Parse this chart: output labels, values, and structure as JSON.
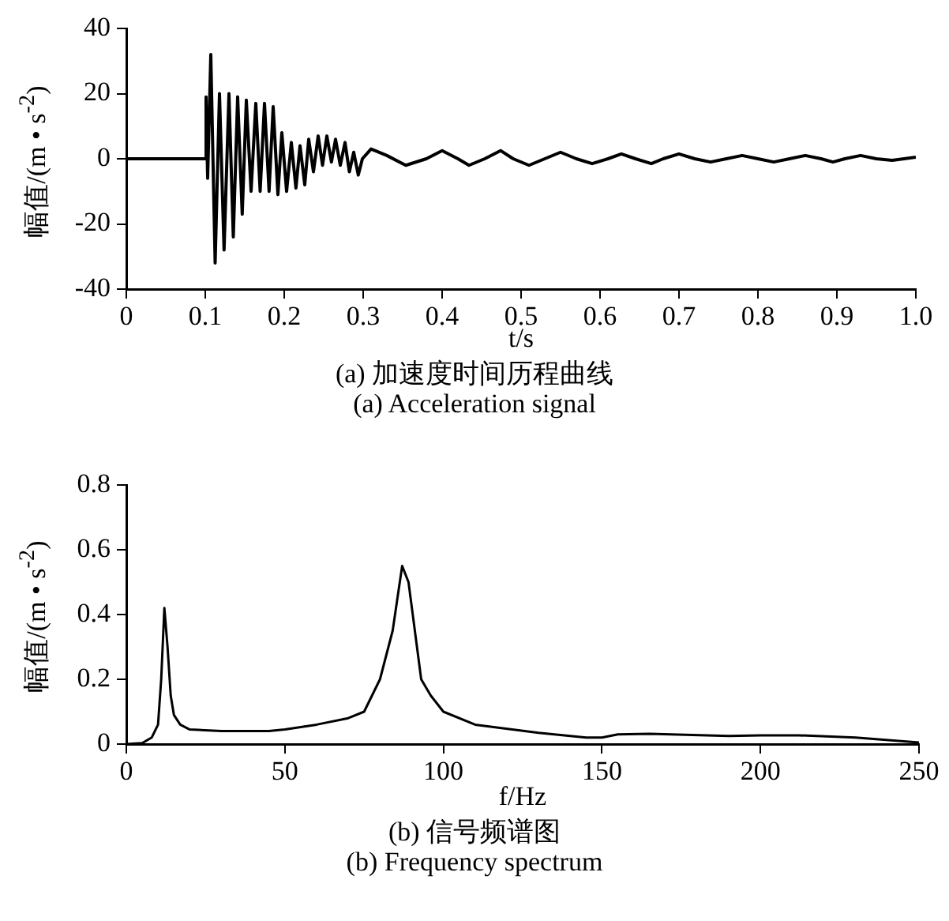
{
  "chart_data": [
    {
      "type": "line",
      "xlabel": "t/s",
      "ylabel": "幅值/(m • s$^{-2}$)",
      "annotations": [
        "(a)  加速度时间历程曲线",
        "(a)  Acceleration signal"
      ],
      "xlim": [
        0,
        1
      ],
      "xticks": [
        0,
        0.1,
        0.2,
        0.3,
        0.4,
        0.5,
        0.6,
        0.7,
        0.8,
        0.9,
        {
          "value": 1,
          "label": "1.0"
        }
      ],
      "ylim": [
        -40,
        40
      ],
      "yticks": [
        -40,
        -20,
        0,
        20,
        40
      ],
      "grid": false,
      "legend": false,
      "marker": "none",
      "line_style": "solid",
      "series": [
        {
          "color": "#000000",
          "x": [
            0,
            0.1,
            0.101,
            0.103,
            0.107,
            0.1125,
            0.118,
            0.1238,
            0.13,
            0.1355,
            0.141,
            0.1468,
            0.152,
            0.158,
            0.164,
            0.1695,
            0.175,
            0.1808,
            0.186,
            0.192,
            0.197,
            0.203,
            0.209,
            0.2148,
            0.22,
            0.226,
            0.231,
            0.237,
            0.243,
            0.2485,
            0.254,
            0.2598,
            0.265,
            0.271,
            0.277,
            0.2825,
            0.288,
            0.2938,
            0.299,
            0.31,
            0.33,
            0.354,
            0.38,
            0.4,
            0.42,
            0.434,
            0.454,
            0.474,
            0.49,
            0.51,
            0.53,
            0.55,
            0.57,
            0.59,
            0.61,
            0.627,
            0.645,
            0.665,
            0.68,
            0.7,
            0.72,
            0.74,
            0.76,
            0.78,
            0.8,
            0.82,
            0.84,
            0.86,
            0.88,
            0.895,
            0.91,
            0.93,
            0.95,
            0.97,
            0.985,
            1
          ],
          "values": [
            0,
            0,
            19,
            -6,
            32,
            -32,
            20,
            -28,
            20,
            -24,
            19,
            -17,
            18,
            -10,
            17,
            -10,
            17,
            -10,
            16,
            -11,
            8,
            -10,
            5,
            -9,
            4,
            -8,
            6,
            -4,
            7,
            -2,
            7,
            -1,
            6,
            -2,
            5,
            -4,
            2,
            -5,
            0,
            3,
            1,
            -2,
            0,
            2.5,
            0,
            -2,
            0,
            2.5,
            0,
            -2,
            0,
            2,
            0,
            -1.5,
            0,
            1.5,
            0,
            -1.5,
            0,
            1.5,
            0,
            -1,
            0,
            1,
            0,
            -1,
            0,
            1,
            0,
            -1,
            0,
            1,
            0,
            -0.5,
            0,
            0.5
          ]
        }
      ]
    },
    {
      "type": "line",
      "xlabel": "f/Hz",
      "ylabel": "幅值/(m • s$^{-2}$)",
      "annotations": [
        "(b)  信号频谱图",
        "(b)  Frequency spectrum"
      ],
      "xlim": [
        0,
        250
      ],
      "xticks": [
        0,
        50,
        100,
        150,
        200,
        250
      ],
      "ylim": [
        0,
        0.8
      ],
      "yticks": [
        0,
        0.2,
        0.4,
        0.6,
        0.8
      ],
      "grid": false,
      "legend": false,
      "marker": "none",
      "line_style": "solid",
      "series": [
        {
          "color": "#000000",
          "x": [
            0,
            5,
            8,
            10,
            11,
            12,
            13,
            14,
            15,
            17,
            20,
            30,
            45,
            50,
            60,
            70,
            75,
            80,
            84,
            87,
            89,
            91,
            93,
            96,
            100,
            110,
            130,
            145,
            150,
            155,
            165,
            190,
            200,
            212,
            230,
            250
          ],
          "values": [
            0,
            0.003,
            0.02,
            0.06,
            0.2,
            0.42,
            0.3,
            0.15,
            0.09,
            0.06,
            0.045,
            0.04,
            0.04,
            0.045,
            0.06,
            0.08,
            0.1,
            0.2,
            0.35,
            0.55,
            0.5,
            0.35,
            0.2,
            0.15,
            0.1,
            0.06,
            0.035,
            0.02,
            0.02,
            0.03,
            0.032,
            0.025,
            0.027,
            0.027,
            0.02,
            0.005
          ]
        }
      ]
    }
  ]
}
